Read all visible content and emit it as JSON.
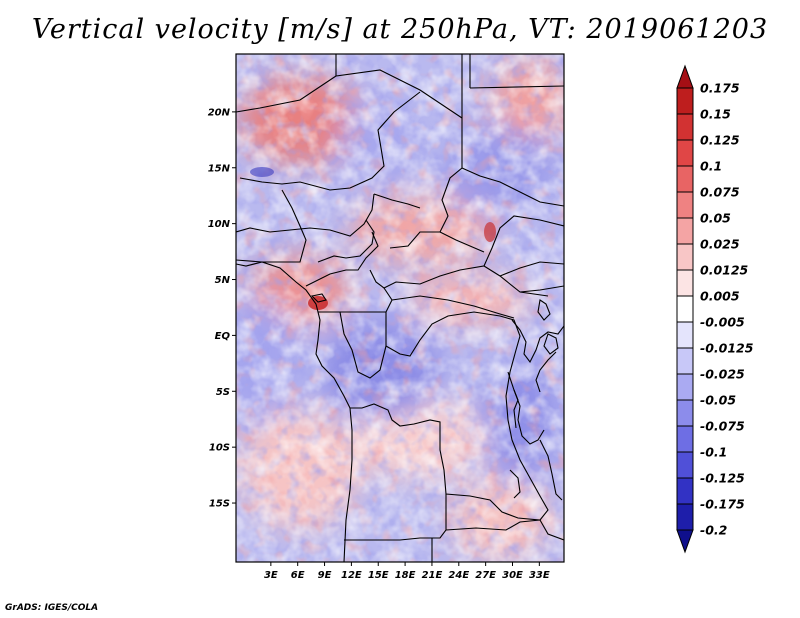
{
  "title": "Vertical velocity [m/s] at 250hPa, VT: 2019061203",
  "footer": "GrADS: IGES/COLA",
  "map": {
    "lon_labels": [
      "3E",
      "6E",
      "9E",
      "12E",
      "15E",
      "18E",
      "21E",
      "24E",
      "27E",
      "30E",
      "33E"
    ],
    "lat_labels": [
      "20N",
      "15N",
      "10N",
      "5N",
      "EQ",
      "5S",
      "10S",
      "15S"
    ],
    "lon_range": [
      0,
      35
    ],
    "lat_range": [
      -20,
      25
    ]
  },
  "colorbar": {
    "labels": [
      "0.175",
      "0.15",
      "0.125",
      "0.1",
      "0.075",
      "0.05",
      "0.025",
      "0.0125",
      "0.005",
      "-0.005",
      "-0.0125",
      "-0.025",
      "-0.05",
      "-0.075",
      "-0.1",
      "-0.125",
      "-0.175",
      "-0.2"
    ],
    "colors": [
      "#a50f15",
      "#be1e1e",
      "#d23232",
      "#e04646",
      "#e86464",
      "#ef8282",
      "#f4a4a4",
      "#f8c6c6",
      "#fce4e4",
      "#ffffff",
      "#e4e4fc",
      "#c8c8f8",
      "#aaaaf2",
      "#8c8ceb",
      "#6e6ee4",
      "#5050d8",
      "#3232c4",
      "#1e1eaa",
      "#0f0f8c"
    ]
  }
}
